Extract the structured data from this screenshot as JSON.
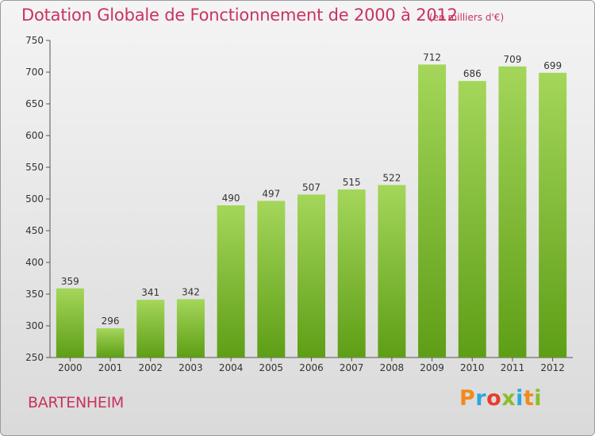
{
  "header": {
    "title": "Dotation Globale de Fonctionnement de 2000 à 2012",
    "subtitle": "(en milliers d'€)"
  },
  "footer": {
    "commune": "BARTENHEIM",
    "logo_letters": [
      "P",
      "r",
      "o",
      "x",
      "i",
      "t",
      "i"
    ],
    "logo_colors": [
      "#f08a1c",
      "#2aa7df",
      "#e63c2f",
      "#8bbd2b",
      "#2aa7df",
      "#f08a1c",
      "#8bbd2b"
    ]
  },
  "colors": {
    "bar_top": "#a4d65a",
    "bar_bottom": "#5e9e16",
    "accent": "#c9335e"
  },
  "chart_data": {
    "type": "bar",
    "categories": [
      "2000",
      "2001",
      "2002",
      "2003",
      "2004",
      "2005",
      "2006",
      "2007",
      "2008",
      "2009",
      "2010",
      "2011",
      "2012"
    ],
    "values": [
      359,
      296,
      341,
      342,
      490,
      497,
      507,
      515,
      522,
      712,
      686,
      709,
      699
    ],
    "title": "Dotation Globale de Fonctionnement de 2000 à 2012",
    "ylim": [
      250,
      750
    ],
    "yticks": [
      250,
      300,
      350,
      400,
      450,
      500,
      550,
      600,
      650,
      700,
      750
    ],
    "grid": false
  }
}
